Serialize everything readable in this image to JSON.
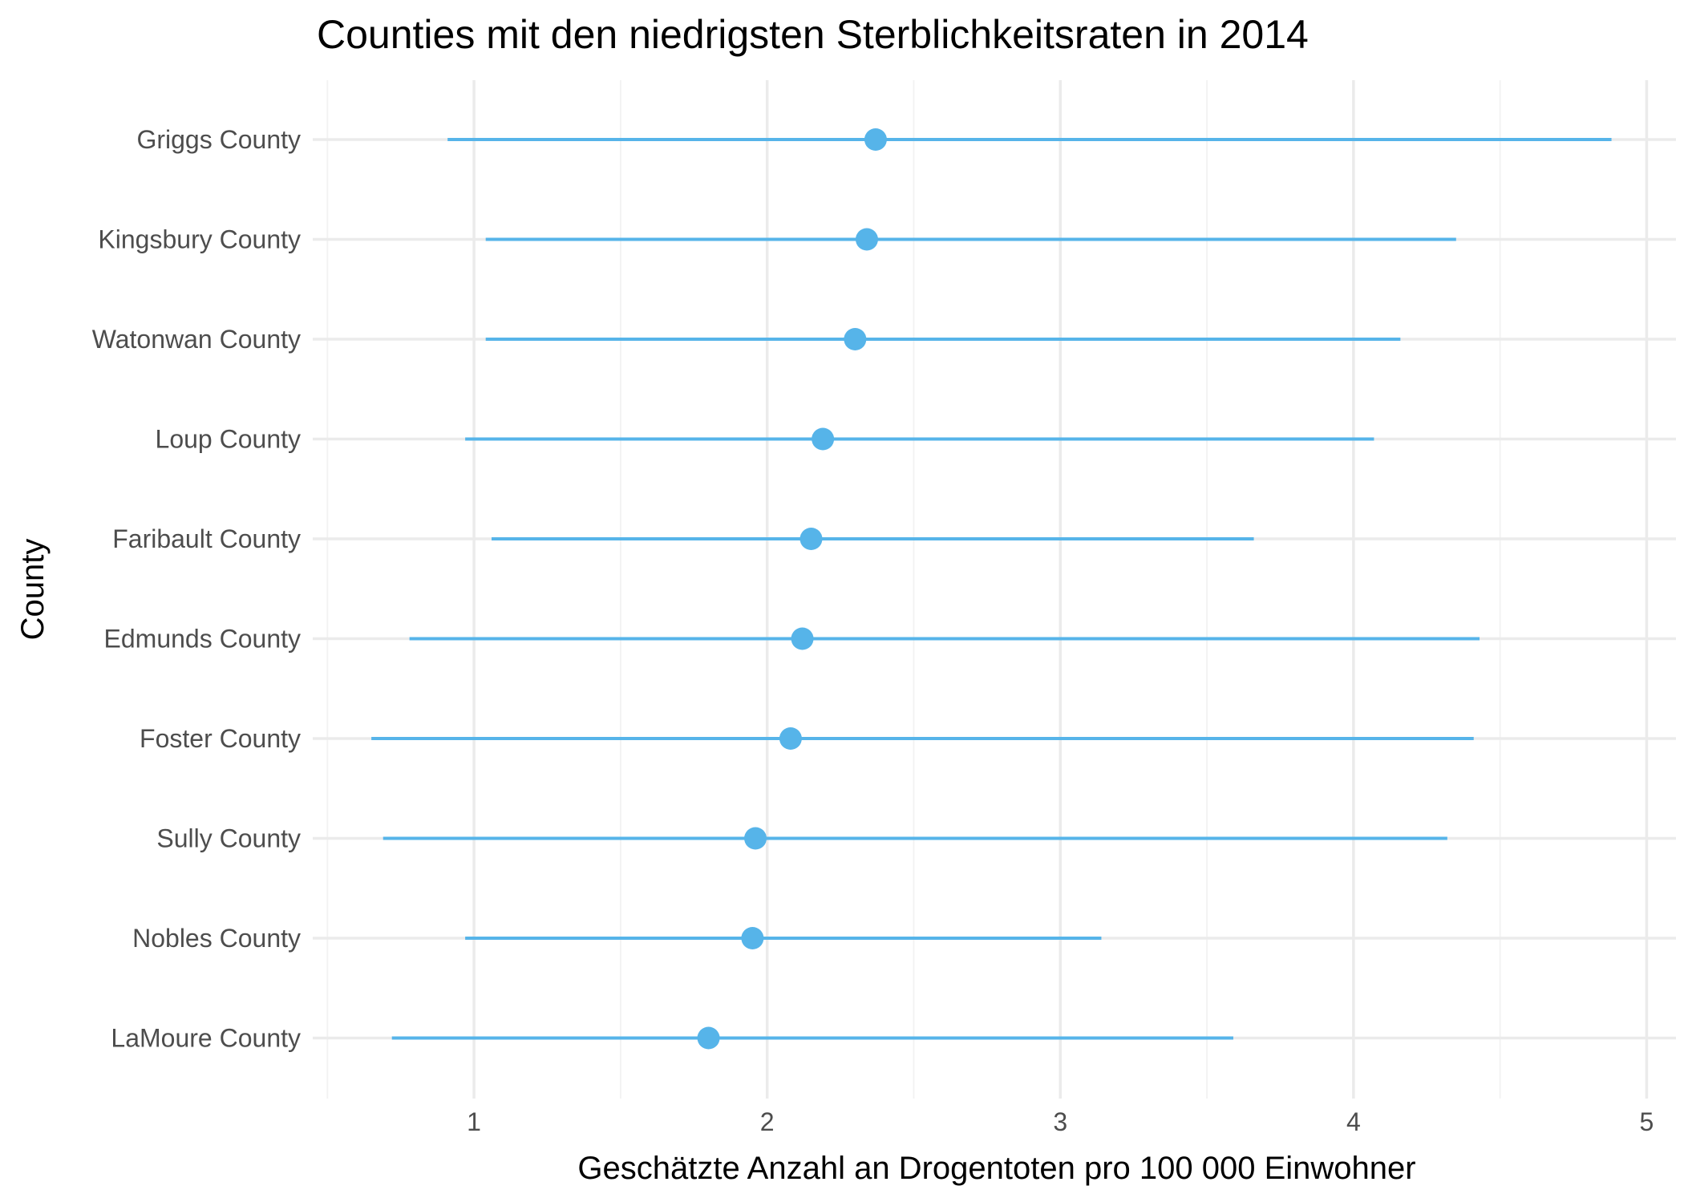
{
  "chart_data": {
    "type": "scatter",
    "title": "Counties mit den niedrigsten Sterblichkeitsraten in 2014",
    "xlabel": "Geschätzte Anzahl an Drogentoten pro 100 000 Einwohner",
    "ylabel": "County",
    "xlim": [
      0.45,
      5.1
    ],
    "xticks": [
      1,
      2,
      3,
      4,
      5
    ],
    "grid": true,
    "color": "#56B4E9",
    "categories": [
      "Griggs County",
      "Kingsbury County",
      "Watonwan County",
      "Loup County",
      "Faribault County",
      "Edmunds County",
      "Foster County",
      "Sully County",
      "Nobles County",
      "LaMoure County"
    ],
    "series": [
      {
        "values": [
          2.37,
          2.34,
          2.3,
          2.19,
          2.15,
          2.12,
          2.08,
          1.96,
          1.95,
          1.8
        ],
        "lower": [
          0.91,
          1.04,
          1.04,
          0.97,
          1.06,
          0.78,
          0.65,
          0.69,
          0.97,
          0.72
        ],
        "upper": [
          4.88,
          4.35,
          4.16,
          4.07,
          3.66,
          4.43,
          4.41,
          4.32,
          3.14,
          3.59
        ]
      }
    ]
  }
}
